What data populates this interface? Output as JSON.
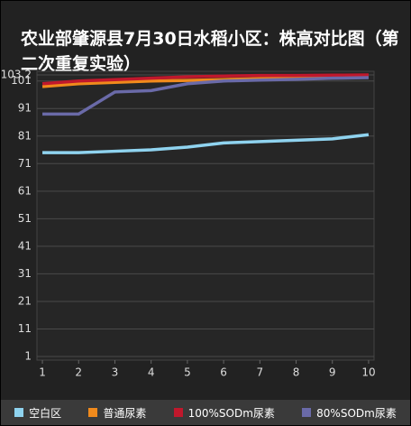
{
  "chart_data": {
    "type": "line",
    "title": "农业部肇源县7月30日水稻小区：株高对比图（第二次重复实验）",
    "x": [
      1,
      2,
      3,
      4,
      5,
      6,
      7,
      8,
      9,
      10
    ],
    "xlim": [
      0.85,
      10.15
    ],
    "xticks": [
      1,
      2,
      3,
      4,
      5,
      6,
      7,
      8,
      9,
      10
    ],
    "ylim": [
      1,
      103.2
    ],
    "yticks": [
      1,
      11,
      21,
      31,
      41,
      51,
      61,
      71,
      81,
      91,
      101,
      103.2
    ],
    "grid": true,
    "legend": "bottom",
    "series": [
      {
        "name": "空白区",
        "color": "#8fd3ef",
        "values": [
          75,
          75,
          75.5,
          76,
          77,
          78.5,
          79,
          79.5,
          80,
          81.5
        ]
      },
      {
        "name": "普通尿素",
        "color": "#f08a1c",
        "values": [
          99,
          100,
          100.5,
          101,
          101.2,
          101.5,
          101.8,
          102.2,
          102.6,
          103
        ]
      },
      {
        "name": "100%SODm尿素",
        "color": "#c0182c",
        "values": [
          100,
          101,
          101.5,
          102,
          102.5,
          102.8,
          103,
          103,
          103.1,
          103.2
        ]
      },
      {
        "name": "80%SODm尿素",
        "color": "#6a6aa8",
        "values": [
          89,
          89,
          97,
          97.5,
          100,
          101,
          101.3,
          101.6,
          102,
          102.2
        ]
      }
    ]
  }
}
